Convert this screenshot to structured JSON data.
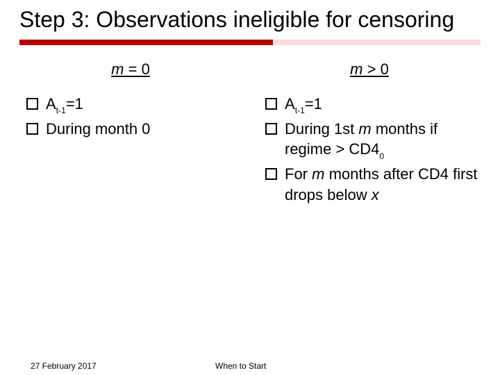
{
  "title": "Step 3: Observations ineligible for censoring",
  "rule": {
    "left_color": "#b00000",
    "right_color": "#fcdcdc",
    "left_width_pct": 55
  },
  "left": {
    "heading_html": "<span class='em'>m</span> = 0",
    "items": [
      "A<span class='sub'>t-1</span>=1",
      "During month 0"
    ]
  },
  "right": {
    "heading_html": "<span class='em'>m</span> &gt; 0",
    "items": [
      "A<span class='sub'>t-1</span>=1",
      "During 1st <span class='em'>m</span> months if regime &gt; CD4<span class='sub'>0</span>",
      "For <span class='em'>m</span> months after CD4 first drops below <span class='em'>x</span>"
    ]
  },
  "footer": {
    "date": "27 February 2017",
    "title": "When to Start"
  }
}
